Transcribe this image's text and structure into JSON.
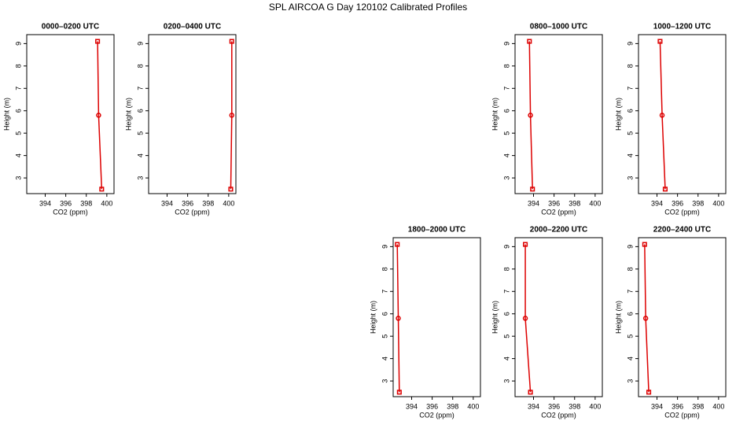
{
  "title": "SPL AIRCOA G  Day 120102  Calibrated Profiles",
  "chart_data": [
    {
      "type": "line",
      "title": "0000–0200 UTC",
      "xlabel": "CO2 (ppm)",
      "ylabel": "Height (m)",
      "color": "#dd0000",
      "x": [
        399.1,
        399.2,
        399.5
      ],
      "values": [
        9.1,
        5.8,
        2.5
      ],
      "xlim": [
        392.2,
        400.7
      ],
      "xticks": [
        394,
        396,
        398,
        400
      ],
      "ylim": [
        2.3,
        9.4
      ],
      "yticks": [
        3,
        4,
        5,
        6,
        7,
        8,
        9
      ]
    },
    {
      "type": "line",
      "title": "0200–0400 UTC",
      "xlabel": "CO2 (ppm)",
      "ylabel": "Height (m)",
      "color": "#dd0000",
      "x": [
        400.3,
        400.3,
        400.2
      ],
      "values": [
        9.1,
        5.8,
        2.5
      ],
      "xlim": [
        392.2,
        400.7
      ],
      "xticks": [
        394,
        396,
        398,
        400
      ],
      "ylim": [
        2.3,
        9.4
      ],
      "yticks": [
        3,
        4,
        5,
        6,
        7,
        8,
        9
      ]
    },
    {
      "type": "line",
      "title": "0800–1000 UTC",
      "xlabel": "CO2 (ppm)",
      "ylabel": "Height (m)",
      "color": "#dd0000",
      "x": [
        393.6,
        393.7,
        393.9
      ],
      "values": [
        9.1,
        5.8,
        2.5
      ],
      "xlim": [
        392.2,
        400.7
      ],
      "xticks": [
        394,
        396,
        398,
        400
      ],
      "ylim": [
        2.3,
        9.4
      ],
      "yticks": [
        3,
        4,
        5,
        6,
        7,
        8,
        9
      ]
    },
    {
      "type": "line",
      "title": "1000–1200 UTC",
      "xlabel": "CO2 (ppm)",
      "ylabel": "Height (m)",
      "color": "#dd0000",
      "x": [
        394.3,
        394.5,
        394.8
      ],
      "values": [
        9.1,
        5.8,
        2.5
      ],
      "xlim": [
        392.2,
        400.7
      ],
      "xticks": [
        394,
        396,
        398,
        400
      ],
      "ylim": [
        2.3,
        9.4
      ],
      "yticks": [
        3,
        4,
        5,
        6,
        7,
        8,
        9
      ]
    },
    {
      "type": "line",
      "title": "1800–2000 UTC",
      "xlabel": "CO2 (ppm)",
      "ylabel": "Height (m)",
      "color": "#dd0000",
      "x": [
        392.6,
        392.7,
        392.8
      ],
      "values": [
        9.1,
        5.8,
        2.5
      ],
      "xlim": [
        392.2,
        400.7
      ],
      "xticks": [
        394,
        396,
        398,
        400
      ],
      "ylim": [
        2.3,
        9.4
      ],
      "yticks": [
        3,
        4,
        5,
        6,
        7,
        8,
        9
      ]
    },
    {
      "type": "line",
      "title": "2000–2200 UTC",
      "xlabel": "CO2 (ppm)",
      "ylabel": "Height (m)",
      "color": "#dd0000",
      "x": [
        393.2,
        393.2,
        393.7
      ],
      "values": [
        9.1,
        5.8,
        2.5
      ],
      "xlim": [
        392.2,
        400.7
      ],
      "xticks": [
        394,
        396,
        398,
        400
      ],
      "ylim": [
        2.3,
        9.4
      ],
      "yticks": [
        3,
        4,
        5,
        6,
        7,
        8,
        9
      ]
    },
    {
      "type": "line",
      "title": "2200–2400 UTC",
      "xlabel": "CO2 (ppm)",
      "ylabel": "Height (m)",
      "color": "#dd0000",
      "x": [
        392.8,
        392.9,
        393.2
      ],
      "values": [
        9.1,
        5.8,
        2.5
      ],
      "xlim": [
        392.2,
        400.7
      ],
      "xticks": [
        394,
        396,
        398,
        400
      ],
      "ylim": [
        2.3,
        9.4
      ],
      "yticks": [
        3,
        4,
        5,
        6,
        7,
        8,
        9
      ]
    }
  ]
}
